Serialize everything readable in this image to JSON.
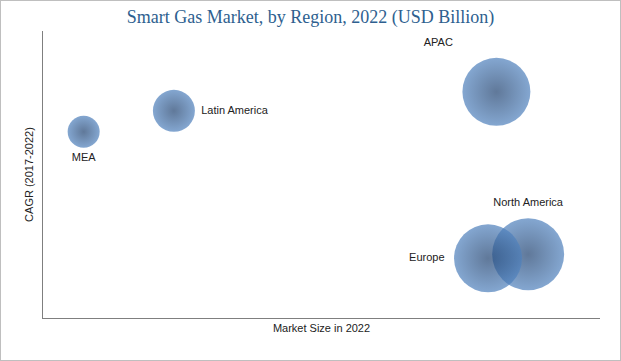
{
  "chart_data": {
    "type": "scatter",
    "title": "Smart Gas Market, by Region, 2022 (USD Billion)",
    "x_label": "Market Size in 2022",
    "y_label": "CAGR (2017-2022)",
    "labels": [
      "MEA",
      "Latin America",
      "APAC",
      "North America",
      "Europe"
    ],
    "x": [
      7.3,
      23.5,
      81.4,
      87.1,
      79.9
    ],
    "values": [
      64.9,
      72.2,
      78.8,
      22.2,
      20.8
    ],
    "size": [
      16,
      21,
      34,
      36,
      34
    ],
    "xlim": [
      0,
      100
    ],
    "ylim": [
      0,
      100
    ],
    "tick_labels": false,
    "grid": false,
    "color": "#4f81bd",
    "marker": "circle"
  }
}
